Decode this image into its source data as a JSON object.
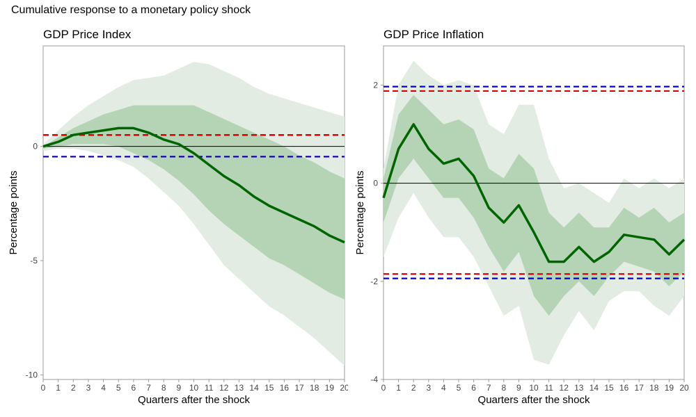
{
  "figure": {
    "title": "Cumulative response to a monetary policy shock"
  },
  "colors": {
    "outer_band": "#e3ece3",
    "inner_band": "#b5d4b5",
    "median_line": "#006400",
    "dash_blue": "#0000cc",
    "dash_red": "#dd0000",
    "zero_line": "#000000",
    "axis": "#999999",
    "tick_text": "#444444"
  },
  "chart_data": [
    {
      "type": "line",
      "title": "GDP Price Index",
      "xlabel": "Quarters after the shock",
      "ylabel": "Percentage points",
      "x": [
        0,
        1,
        2,
        3,
        4,
        5,
        6,
        7,
        8,
        9,
        10,
        11,
        12,
        13,
        14,
        15,
        16,
        17,
        18,
        19,
        20
      ],
      "xlim": [
        0,
        20
      ],
      "ylim": [
        -10.2,
        4.4
      ],
      "yticks": [
        0,
        -5,
        -10
      ],
      "series": [
        {
          "role": "outer_band_upper",
          "values": [
            0.1,
            0.7,
            1.3,
            1.8,
            2.2,
            2.6,
            2.9,
            3.0,
            3.1,
            3.4,
            3.7,
            3.6,
            3.3,
            3.0,
            2.6,
            2.3,
            2.1,
            1.9,
            1.7,
            1.5,
            1.3
          ]
        },
        {
          "role": "inner_band_upper",
          "values": [
            0.0,
            0.4,
            0.8,
            1.1,
            1.4,
            1.6,
            1.8,
            1.8,
            1.8,
            1.8,
            1.8,
            1.5,
            1.2,
            0.9,
            0.6,
            0.3,
            0.0,
            -0.4,
            -0.7,
            -1.1,
            -1.4
          ]
        },
        {
          "role": "median",
          "values": [
            0.0,
            0.2,
            0.5,
            0.6,
            0.7,
            0.8,
            0.8,
            0.6,
            0.3,
            0.1,
            -0.3,
            -0.8,
            -1.3,
            -1.7,
            -2.2,
            -2.6,
            -2.9,
            -3.2,
            -3.5,
            -3.9,
            -4.2
          ]
        },
        {
          "role": "inner_band_lower",
          "values": [
            -0.1,
            0.0,
            0.1,
            0.1,
            0.1,
            0.0,
            -0.3,
            -0.6,
            -1.0,
            -1.5,
            -2.1,
            -2.8,
            -3.4,
            -3.9,
            -4.4,
            -4.9,
            -5.2,
            -5.6,
            -6.0,
            -6.4,
            -6.7
          ]
        },
        {
          "role": "outer_band_lower",
          "values": [
            -0.2,
            -0.1,
            -0.1,
            -0.2,
            -0.4,
            -0.6,
            -0.9,
            -1.4,
            -2.0,
            -2.6,
            -3.4,
            -4.3,
            -5.2,
            -5.8,
            -6.4,
            -7.0,
            -7.4,
            -7.9,
            -8.4,
            -9.0,
            -9.6
          ]
        }
      ],
      "reference_lines": [
        {
          "value": 0,
          "color": "black",
          "style": "solid"
        },
        {
          "value": 0.5,
          "color": "blue",
          "style": "dashed"
        },
        {
          "value": 0.5,
          "color": "red",
          "style": "dashed"
        },
        {
          "value": -0.45,
          "color": "red",
          "style": "dashed"
        },
        {
          "value": -0.45,
          "color": "blue",
          "style": "dashed"
        }
      ]
    },
    {
      "type": "line",
      "title": "GDP Price Inflation",
      "xlabel": "Quarters after the shock",
      "ylabel": "Percentage points",
      "x": [
        0,
        1,
        2,
        3,
        4,
        5,
        6,
        7,
        8,
        9,
        10,
        11,
        12,
        13,
        14,
        15,
        16,
        17,
        18,
        19,
        20
      ],
      "xlim": [
        0,
        20
      ],
      "ylim": [
        -4.0,
        2.8
      ],
      "yticks": [
        2,
        0,
        -2,
        -4
      ],
      "series": [
        {
          "role": "outer_band_upper",
          "values": [
            0.3,
            2.0,
            2.5,
            2.2,
            2.0,
            2.1,
            2.0,
            1.2,
            1.0,
            1.6,
            1.6,
            0.5,
            -0.1,
            0.0,
            -0.2,
            -0.4,
            0.1,
            -0.1,
            0.1,
            -0.1,
            0.1
          ]
        },
        {
          "role": "inner_band_upper",
          "values": [
            0.1,
            1.4,
            1.8,
            1.5,
            1.2,
            1.3,
            1.1,
            0.3,
            0.1,
            0.6,
            0.3,
            -0.6,
            -0.9,
            -0.6,
            -0.9,
            -0.9,
            -0.5,
            -0.7,
            -0.5,
            -0.8,
            -0.6
          ]
        },
        {
          "role": "median",
          "values": [
            -0.3,
            0.7,
            1.2,
            0.7,
            0.4,
            0.5,
            0.15,
            -0.5,
            -0.8,
            -0.45,
            -1.0,
            -1.6,
            -1.6,
            -1.3,
            -1.6,
            -1.4,
            -1.05,
            -1.1,
            -1.15,
            -1.45,
            -1.15
          ]
        },
        {
          "role": "inner_band_lower",
          "values": [
            -0.8,
            0.1,
            0.5,
            0.1,
            -0.3,
            -0.3,
            -0.7,
            -1.3,
            -1.8,
            -1.4,
            -2.3,
            -2.7,
            -2.3,
            -2.0,
            -2.3,
            -1.9,
            -1.6,
            -1.7,
            -1.8,
            -2.1,
            -1.8
          ]
        },
        {
          "role": "outer_band_lower",
          "values": [
            -1.5,
            -0.7,
            -0.2,
            -0.7,
            -1.1,
            -1.1,
            -1.5,
            -2.1,
            -2.7,
            -2.5,
            -3.6,
            -3.7,
            -3.1,
            -2.6,
            -3.0,
            -2.4,
            -2.2,
            -2.2,
            -2.5,
            -2.7,
            -2.3
          ]
        }
      ],
      "reference_lines": [
        {
          "value": 0,
          "color": "black",
          "style": "solid"
        },
        {
          "value": 1.97,
          "color": "blue",
          "style": "dashed"
        },
        {
          "value": 1.88,
          "color": "red",
          "style": "dashed"
        },
        {
          "value": -1.85,
          "color": "red",
          "style": "dashed"
        },
        {
          "value": -1.94,
          "color": "blue",
          "style": "dashed"
        }
      ]
    }
  ]
}
